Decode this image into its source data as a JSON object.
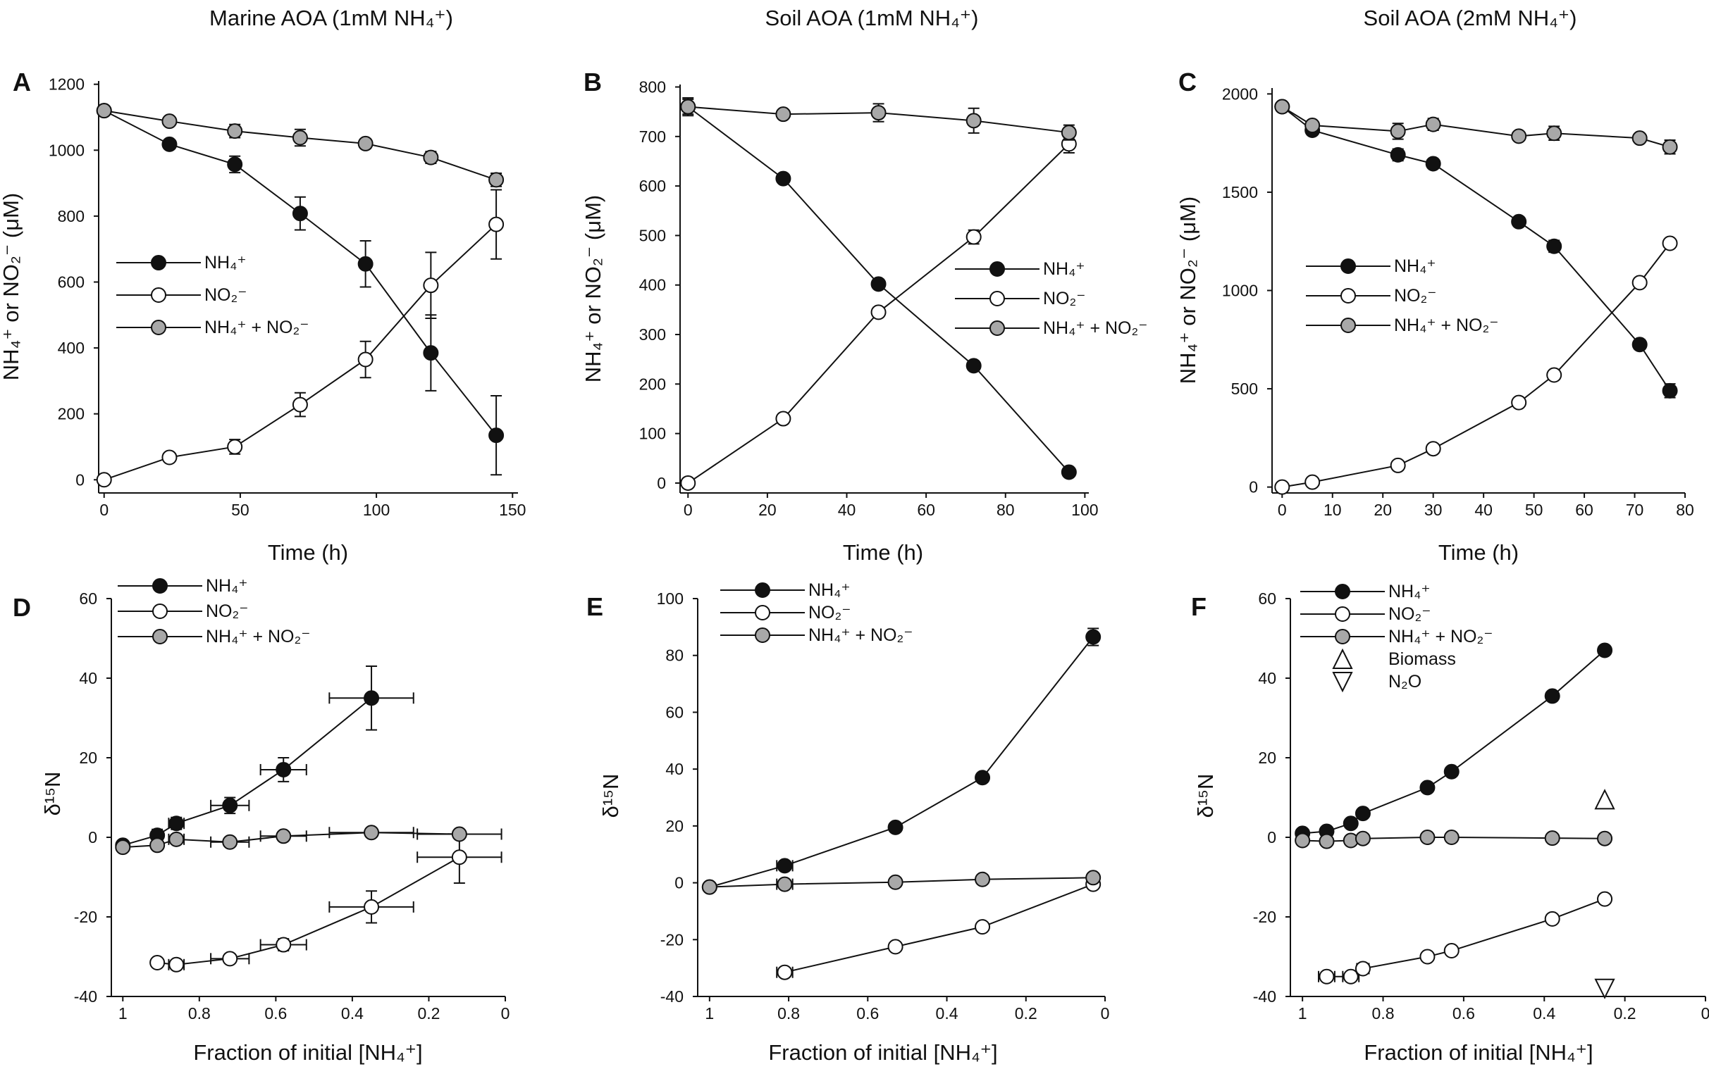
{
  "chart_data": [
    {
      "panel": "A",
      "type": "line",
      "title": "Marine AOA (1mM NH₄⁺)",
      "xlabel": "Time (h)",
      "ylabel": "NH₄⁺ or NO₂⁻ (μM)",
      "xlim": [
        -2,
        152
      ],
      "ylim": [
        -40,
        1210
      ],
      "xticks": [
        0,
        50,
        100,
        150
      ],
      "yticks": [
        0,
        200,
        400,
        600,
        800,
        1000,
        1200
      ],
      "legend": [
        "NH₄⁺",
        "NO₂⁻",
        "NH₄⁺ + NO₂⁻"
      ],
      "series": [
        {
          "name": "NH₄⁺",
          "marker": "filled",
          "x": [
            0,
            24,
            48,
            72,
            96,
            120,
            144
          ],
          "y": [
            1120,
            1018,
            957,
            808,
            655,
            385,
            135
          ],
          "yerr": [
            8,
            12,
            25,
            50,
            70,
            115,
            120
          ]
        },
        {
          "name": "NO₂⁻",
          "marker": "open",
          "x": [
            0,
            24,
            48,
            72,
            96,
            120,
            144
          ],
          "y": [
            0,
            68,
            100,
            228,
            365,
            590,
            775
          ],
          "yerr": [
            8,
            10,
            22,
            36,
            55,
            100,
            105
          ]
        },
        {
          "name": "NH₄⁺ + NO₂⁻",
          "marker": "gray",
          "x": [
            0,
            24,
            48,
            72,
            96,
            120,
            144
          ],
          "y": [
            1120,
            1088,
            1058,
            1038,
            1020,
            978,
            910
          ],
          "yerr": [
            8,
            10,
            20,
            25,
            15,
            18,
            20
          ]
        }
      ]
    },
    {
      "panel": "B",
      "type": "line",
      "title": "Soil AOA (1mM NH₄⁺)",
      "xlabel": "Time (h)",
      "ylabel": "NH₄⁺ or NO₂⁻ (μM)",
      "xlim": [
        -2,
        101
      ],
      "ylim": [
        -20,
        805
      ],
      "xticks": [
        0,
        20,
        40,
        60,
        80,
        100
      ],
      "yticks": [
        0,
        100,
        200,
        300,
        400,
        500,
        600,
        700,
        800
      ],
      "legend": [
        "NH₄⁺",
        "NO₂⁻",
        "NH₄⁺ + NO₂⁻"
      ],
      "series": [
        {
          "name": "NH₄⁺",
          "marker": "filled",
          "x": [
            0,
            24,
            48,
            72,
            96
          ],
          "y": [
            760,
            615,
            402,
            237,
            22
          ],
          "yerr": [
            15,
            8,
            8,
            7,
            7
          ]
        },
        {
          "name": "NO₂⁻",
          "marker": "open",
          "x": [
            0,
            24,
            48,
            72,
            96
          ],
          "y": [
            0,
            130,
            345,
            497,
            685
          ],
          "yerr": [
            5,
            10,
            10,
            14,
            18
          ]
        },
        {
          "name": "NH₄⁺ + NO₂⁻",
          "marker": "gray",
          "x": [
            0,
            24,
            48,
            72,
            96
          ],
          "y": [
            760,
            745,
            748,
            732,
            708
          ],
          "yerr": [
            18,
            6,
            18,
            25,
            15
          ]
        }
      ]
    },
    {
      "panel": "C",
      "type": "line",
      "title": "Soil AOA (2mM NH₄⁺)",
      "xlabel": "Time (h)",
      "ylabel": "NH₄⁺ or NO₂⁻ (μM)",
      "xlim": [
        -2,
        80
      ],
      "ylim": [
        -30,
        2030
      ],
      "xticks": [
        0,
        10,
        20,
        30,
        40,
        50,
        60,
        70,
        80
      ],
      "yticks": [
        0,
        500,
        1000,
        1500,
        2000
      ],
      "legend": [
        "NH₄⁺",
        "NO₂⁻",
        "NH₄⁺ + NO₂⁻"
      ],
      "series": [
        {
          "name": "NH₄⁺",
          "marker": "filled",
          "x": [
            0,
            6,
            23,
            30,
            47,
            54,
            71,
            77
          ],
          "y": [
            1935,
            1815,
            1690,
            1645,
            1350,
            1225,
            725,
            490
          ],
          "yerr": [
            15,
            20,
            30,
            20,
            15,
            30,
            25,
            35
          ]
        },
        {
          "name": "NO₂⁻",
          "marker": "open",
          "x": [
            0,
            6,
            23,
            30,
            47,
            54,
            71,
            77
          ],
          "y": [
            0,
            25,
            110,
            195,
            430,
            570,
            1040,
            1240
          ],
          "yerr": [
            5,
            5,
            10,
            10,
            15,
            15,
            20,
            15
          ]
        },
        {
          "name": "NH₄⁺ + NO₂⁻",
          "marker": "gray",
          "x": [
            0,
            6,
            23,
            30,
            47,
            54,
            71,
            77
          ],
          "y": [
            1935,
            1840,
            1810,
            1845,
            1785,
            1800,
            1775,
            1730
          ],
          "yerr": [
            20,
            20,
            40,
            30,
            15,
            35,
            20,
            35
          ]
        }
      ]
    },
    {
      "panel": "D",
      "type": "line",
      "xlabel": "Fraction of initial [NH₄⁺]",
      "ylabel": "δ¹⁵N",
      "xlim": [
        1.03,
        0
      ],
      "ylim": [
        -40,
        60
      ],
      "xticks": [
        1,
        0.8,
        0.6,
        0.4,
        0.2,
        0
      ],
      "xtick_labels": [
        "1",
        "0.8",
        "0.6",
        "0.4",
        "0.2",
        "0"
      ],
      "yticks": [
        -40,
        -20,
        0,
        20,
        40,
        60
      ],
      "legend": [
        "NH₄⁺",
        "NO₂⁻",
        "NH₄⁺ + NO₂⁻"
      ],
      "series": [
        {
          "name": "NH₄⁺",
          "marker": "filled",
          "x": [
            1.0,
            0.91,
            0.86,
            0.72,
            0.58,
            0.35
          ],
          "y": [
            -2,
            0.5,
            3.5,
            8,
            17,
            35
          ],
          "xerr": [
            0.01,
            0.01,
            0.02,
            0.05,
            0.06,
            0.11
          ],
          "yerr": [
            0.8,
            1.5,
            1.5,
            2,
            3,
            8
          ]
        },
        {
          "name": "NO₂⁻",
          "marker": "open",
          "x": [
            0.91,
            0.86,
            0.72,
            0.58,
            0.35,
            0.12
          ],
          "y": [
            -31.5,
            -32,
            -30.5,
            -27,
            -17.5,
            -5
          ],
          "xerr": [
            0.01,
            0.02,
            0.05,
            0.06,
            0.11,
            0.11
          ],
          "yerr": [
            1,
            1,
            1,
            1.5,
            4,
            6.5
          ]
        },
        {
          "name": "NH₄⁺ + NO₂⁻",
          "marker": "gray",
          "x": [
            1.0,
            0.91,
            0.86,
            0.72,
            0.58,
            0.35,
            0.12
          ],
          "y": [
            -2.5,
            -2,
            -0.5,
            -1.2,
            0.3,
            1.2,
            0.8
          ],
          "xerr": [
            0.01,
            0.01,
            0.02,
            0.05,
            0.06,
            0.11,
            0.11
          ],
          "yerr": [
            0.8,
            1,
            0.8,
            0.8,
            0.8,
            0.8,
            0.8
          ]
        }
      ]
    },
    {
      "panel": "E",
      "type": "line",
      "xlabel": "Fraction of initial [NH₄⁺]",
      "ylabel": "δ¹⁵N",
      "xlim": [
        1.03,
        0
      ],
      "ylim": [
        -40,
        100
      ],
      "xticks": [
        1,
        0.8,
        0.6,
        0.4,
        0.2,
        0
      ],
      "xtick_labels": [
        "1",
        "0.8",
        "0.6",
        "0.4",
        "0.2",
        "0"
      ],
      "yticks": [
        -40,
        -20,
        0,
        20,
        40,
        60,
        80,
        100
      ],
      "legend": [
        "NH₄⁺",
        "NO₂⁻",
        "NH₄⁺ + NO₂⁻"
      ],
      "series": [
        {
          "name": "NH₄⁺",
          "marker": "filled",
          "x": [
            1.0,
            0.81,
            0.53,
            0.31,
            0.03
          ],
          "y": [
            -1.5,
            6,
            19.5,
            37,
            86.5
          ],
          "xerr": [
            0.005,
            0.02,
            0.01,
            0.01,
            0.01
          ],
          "yerr": [
            0.8,
            1,
            1.5,
            1.5,
            3
          ]
        },
        {
          "name": "NO₂⁻",
          "marker": "open",
          "x": [
            0.81,
            0.53,
            0.31,
            0.03
          ],
          "y": [
            -31.5,
            -22.5,
            -15.5,
            -0.5
          ],
          "xerr": [
            0.02,
            0.01,
            0.01,
            0.01
          ],
          "yerr": [
            1,
            1.5,
            1.5,
            1
          ]
        },
        {
          "name": "NH₄⁺ + NO₂⁻",
          "marker": "gray",
          "x": [
            1.0,
            0.81,
            0.53,
            0.31,
            0.03
          ],
          "y": [
            -1.5,
            -0.5,
            0.2,
            1.2,
            1.8
          ],
          "xerr": [
            0.005,
            0.02,
            0.01,
            0.01,
            0.01
          ],
          "yerr": [
            0.8,
            0.8,
            1.5,
            1.5,
            1.5
          ]
        }
      ]
    },
    {
      "panel": "F",
      "type": "line",
      "xlabel": "Fraction of initial [NH₄⁺]",
      "ylabel": "δ¹⁵N",
      "xlim": [
        1.03,
        0
      ],
      "ylim": [
        -40,
        60
      ],
      "xticks": [
        1,
        0.8,
        0.6,
        0.4,
        0.2,
        0
      ],
      "xtick_labels": [
        "1",
        "0.8",
        "0.6",
        "0.4",
        "0.2",
        "0"
      ],
      "yticks": [
        -40,
        -20,
        0,
        20,
        40,
        60
      ],
      "legend": [
        "NH₄⁺",
        "NO₂⁻",
        "NH₄⁺ + NO₂⁻",
        "Biomass",
        "N₂O"
      ],
      "series": [
        {
          "name": "NH₄⁺",
          "marker": "filled",
          "x": [
            1.0,
            0.94,
            0.88,
            0.85,
            0.69,
            0.63,
            0.38,
            0.25
          ],
          "y": [
            1,
            1.5,
            3.5,
            6,
            12.5,
            16.5,
            35.5,
            47
          ],
          "xerr": [
            0.005,
            0.01,
            0.01,
            0.01,
            0.005,
            0.005,
            0.005,
            0.005
          ],
          "yerr": [
            0.8,
            0.8,
            1,
            1,
            1,
            1,
            1,
            1
          ]
        },
        {
          "name": "NO₂⁻",
          "marker": "open",
          "x": [
            0.94,
            0.88,
            0.85,
            0.69,
            0.63,
            0.38,
            0.25
          ],
          "y": [
            -35,
            -35,
            -33,
            -30,
            -28.5,
            -20.5,
            -15.5
          ],
          "xerr": [
            0.02,
            0.02,
            0.015,
            0.005,
            0.01,
            0.005,
            0.005
          ],
          "yerr": [
            1,
            1,
            1,
            0.8,
            1,
            1,
            1
          ]
        },
        {
          "name": "NH₄⁺ + NO₂⁻",
          "marker": "gray",
          "x": [
            1.0,
            0.94,
            0.88,
            0.85,
            0.69,
            0.63,
            0.38,
            0.25
          ],
          "y": [
            -0.8,
            -1,
            -0.8,
            -0.3,
            0,
            0,
            -0.2,
            -0.3
          ],
          "xerr": [
            0.005,
            0.01,
            0.01,
            0.01,
            0.005,
            0.005,
            0.005,
            0.005
          ],
          "yerr": [
            0.8,
            0.8,
            0.8,
            0.8,
            0.8,
            0.8,
            0.8,
            0.8
          ]
        },
        {
          "name": "Biomass",
          "marker": "triangle-up",
          "x": [
            0.25
          ],
          "y": [
            9.5
          ]
        },
        {
          "name": "N₂O",
          "marker": "triangle-down",
          "x": [
            0.25
          ],
          "y": [
            -38
          ]
        }
      ]
    }
  ]
}
